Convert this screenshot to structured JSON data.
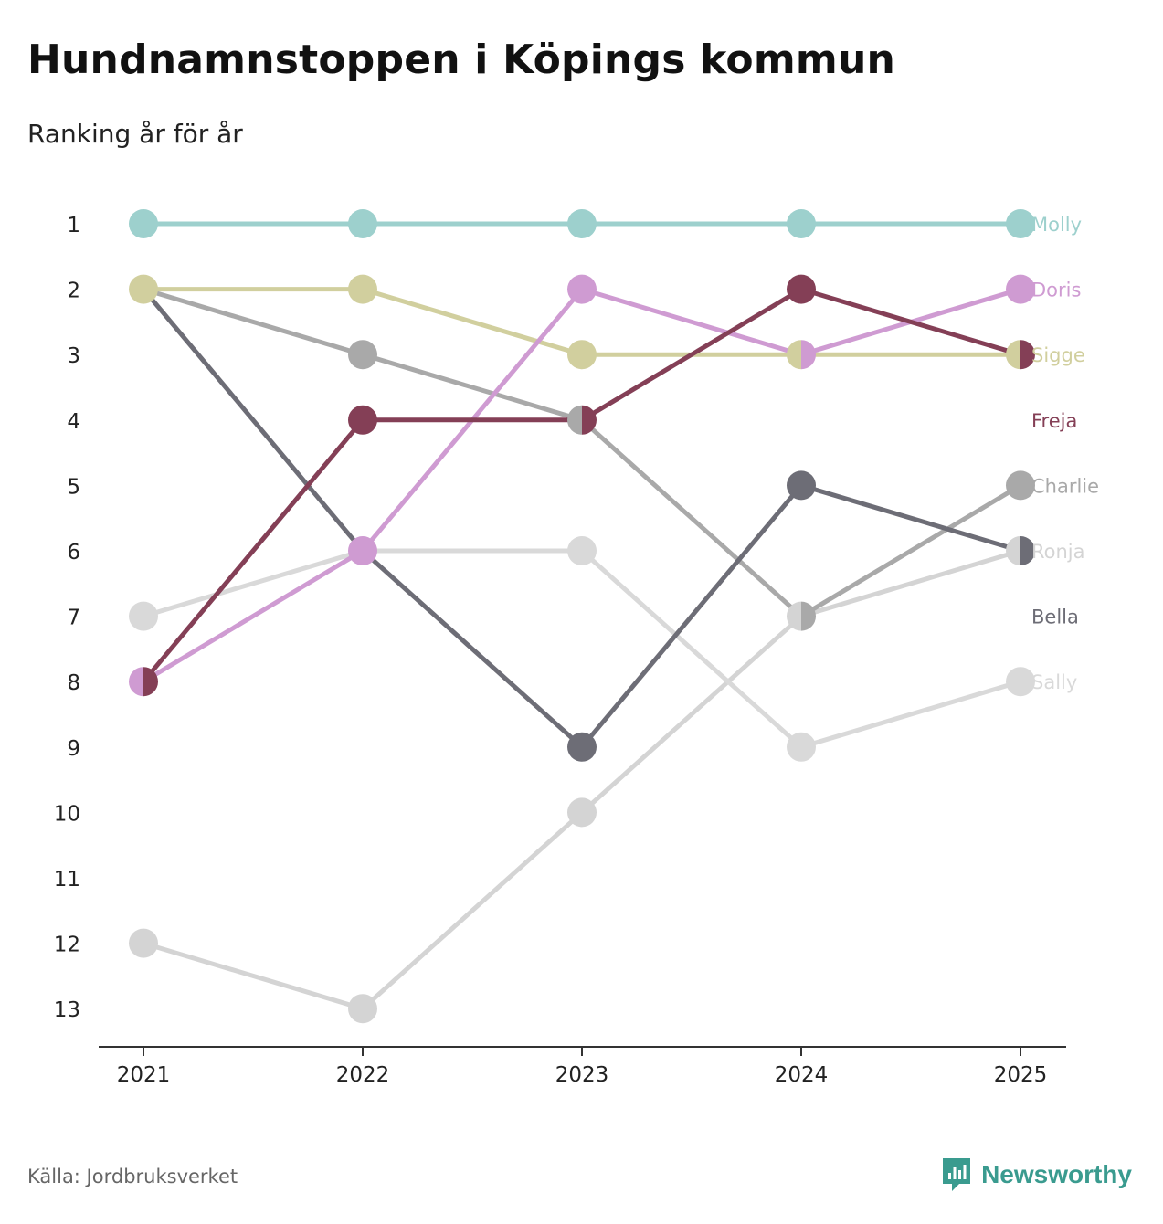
{
  "header": {
    "title": "Hundnamnstoppen i Köpings kommun",
    "subtitle": "Ranking år för år"
  },
  "footer": {
    "source": "Källa: Jordbruksverket",
    "brand": "Newsworthy",
    "brand_icon": "newsworthy-logo-icon"
  },
  "colors": {
    "Molly": "#9dd0cd",
    "Doris": "#cf9bd2",
    "Sigge": "#d1cf9e",
    "Freja": "#843f56",
    "Charlie": "#a9a9a9",
    "Ronja": "#d4d4d4",
    "Bella": "#6d6d76",
    "Sally": "#d9d9d9",
    "axis": "#333333",
    "tick_text": "#222222"
  },
  "chart_data": {
    "type": "line",
    "title": "Hundnamnstoppen i Köpings kommun",
    "subtitle": "Ranking år för år",
    "x": [
      "2021",
      "2022",
      "2023",
      "2024",
      "2025"
    ],
    "y_ticks": [
      "1",
      "2",
      "3",
      "4",
      "5",
      "6",
      "7",
      "8",
      "9",
      "10",
      "11",
      "12",
      "13"
    ],
    "ylim": [
      1,
      13
    ],
    "y_inverted": true,
    "xlabel": "",
    "ylabel": "",
    "legend": "direct-labels-right",
    "grid": false,
    "series": [
      {
        "name": "Ronja",
        "values": [
          12,
          13,
          10,
          7,
          6
        ]
      },
      {
        "name": "Sally",
        "values": [
          7,
          6,
          6,
          9,
          8
        ]
      },
      {
        "name": "Charlie",
        "values": [
          2,
          3,
          4,
          7,
          5
        ]
      },
      {
        "name": "Bella",
        "values": [
          2,
          6,
          9,
          5,
          6
        ]
      },
      {
        "name": "Sigge",
        "values": [
          2,
          2,
          3,
          3,
          3
        ]
      },
      {
        "name": "Doris",
        "values": [
          8,
          6,
          2,
          3,
          2
        ]
      },
      {
        "name": "Freja",
        "values": [
          8,
          4,
          4,
          2,
          3
        ]
      },
      {
        "name": "Molly",
        "values": [
          1,
          1,
          1,
          1,
          1
        ]
      }
    ],
    "end_labels": [
      {
        "name": "Molly",
        "rank": 1
      },
      {
        "name": "Doris",
        "rank": 2
      },
      {
        "name": "Sigge",
        "rank": 3
      },
      {
        "name": "Freja",
        "rank": 4
      },
      {
        "name": "Charlie",
        "rank": 5
      },
      {
        "name": "Ronja",
        "rank": 6
      },
      {
        "name": "Bella",
        "rank": 7
      },
      {
        "name": "Sally",
        "rank": 8
      }
    ]
  }
}
